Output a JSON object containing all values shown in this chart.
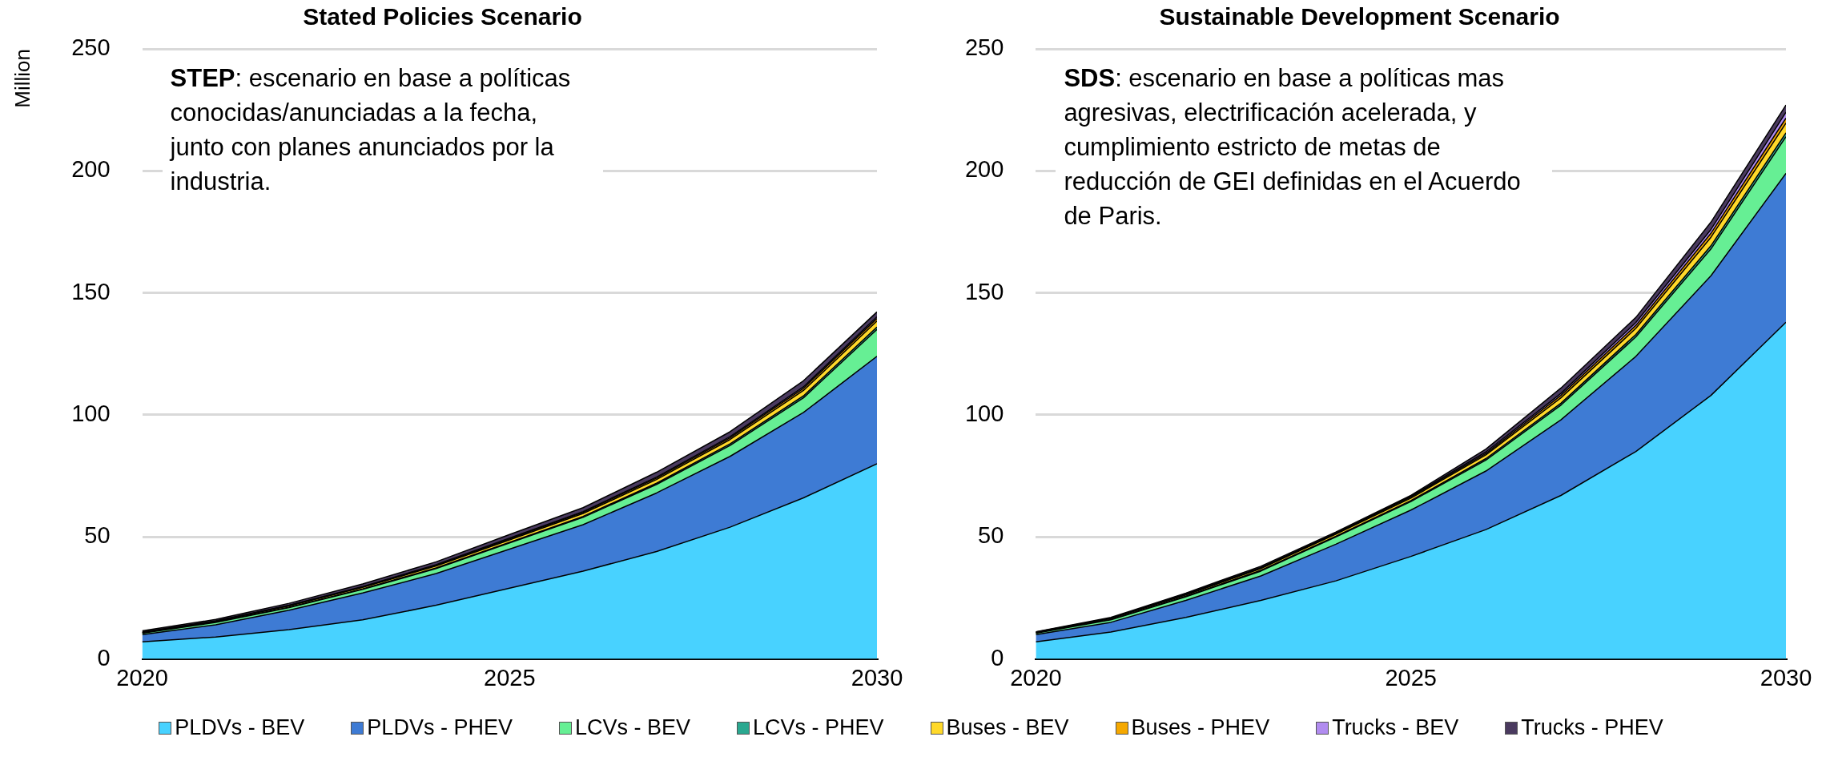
{
  "chart_data": [
    {
      "type": "area",
      "title": "Stated Policies Scenario",
      "ylabel": "Million",
      "stacked": true,
      "x": [
        2020,
        2021,
        2022,
        2023,
        2024,
        2025,
        2026,
        2027,
        2028,
        2029,
        2030
      ],
      "xlim": [
        2020,
        2030
      ],
      "xticks": [
        2020,
        2025,
        2030
      ],
      "ylim": [
        0,
        250
      ],
      "yticks": [
        0,
        50,
        100,
        150,
        200,
        250
      ],
      "grid": "y",
      "legend": "bottom",
      "marker": "none",
      "line_style": "solid",
      "annotations": [
        "STEP: escenario en base a políticas conocidas/anunciadas a la fecha, junto con planes anunciados por la industria."
      ],
      "series": [
        {
          "name": "PLDVs - BEV",
          "color": "#48d2ff",
          "values": [
            7,
            9,
            12,
            16,
            22,
            29,
            36,
            44,
            54,
            66,
            80
          ]
        },
        {
          "name": "PLDVs - PHEV",
          "color": "#3e7bd4",
          "values": [
            3,
            5,
            8,
            11,
            13,
            16,
            19,
            24,
            29,
            35,
            44
          ]
        },
        {
          "name": "LCVs - BEV",
          "color": "#66ef94",
          "values": [
            0.5,
            1,
            1,
            1.5,
            2,
            2.5,
            3,
            3.5,
            4.5,
            6,
            11
          ]
        },
        {
          "name": "LCVs - PHEV",
          "color": "#2aa890",
          "values": [
            0.1,
            0.1,
            0.2,
            0.2,
            0.3,
            0.3,
            0.4,
            0.5,
            0.6,
            0.8,
            1
          ]
        },
        {
          "name": "Buses - BEV",
          "color": "#ffd92a",
          "values": [
            0.2,
            0.3,
            0.5,
            0.6,
            0.8,
            1,
            1.2,
            1.5,
            1.8,
            2.2,
            2.5
          ]
        },
        {
          "name": "Buses - PHEV",
          "color": "#f5a800",
          "values": [
            0.1,
            0.1,
            0.2,
            0.2,
            0.3,
            0.4,
            0.5,
            0.6,
            0.7,
            0.9,
            1
          ]
        },
        {
          "name": "Trucks - BEV",
          "color": "#b18cf0",
          "values": [
            0.1,
            0.1,
            0.1,
            0.2,
            0.2,
            0.3,
            0.3,
            0.4,
            0.5,
            0.6,
            0.7
          ]
        },
        {
          "name": "Trucks - PHEV",
          "color": "#4a3a5f",
          "values": [
            0.5,
            0.6,
            0.8,
            1,
            1.2,
            1.5,
            1.6,
            2,
            2,
            2.5,
            2
          ]
        }
      ]
    },
    {
      "type": "area",
      "title": "Sustainable Development Scenario",
      "stacked": true,
      "x": [
        2020,
        2021,
        2022,
        2023,
        2024,
        2025,
        2026,
        2027,
        2028,
        2029,
        2030
      ],
      "xlim": [
        2020,
        2030
      ],
      "xticks": [
        2020,
        2025,
        2030
      ],
      "ylim": [
        0,
        250
      ],
      "yticks": [
        0,
        50,
        100,
        150,
        200,
        250
      ],
      "grid": "y",
      "legend": "bottom",
      "marker": "none",
      "line_style": "solid",
      "annotations": [
        "SDS: escenario en base a políticas mas agresivas, electrificación acelerada, y cumplimiento estricto de metas de reducción de GEI definidas en el Acuerdo de Paris."
      ],
      "series": [
        {
          "name": "PLDVs - BEV",
          "color": "#48d2ff",
          "values": [
            7,
            11,
            17,
            24,
            32,
            42,
            53,
            67,
            85,
            108,
            138
          ]
        },
        {
          "name": "PLDVs - PHEV",
          "color": "#3e7bd4",
          "values": [
            3,
            4,
            7,
            10,
            15,
            19,
            24,
            31,
            39,
            49,
            61
          ]
        },
        {
          "name": "LCVs - BEV",
          "color": "#66ef94",
          "values": [
            0.5,
            1,
            1.5,
            2,
            3,
            3.5,
            4.5,
            6,
            8,
            11,
            15
          ]
        },
        {
          "name": "LCVs - PHEV",
          "color": "#2aa890",
          "values": [
            0.1,
            0.1,
            0.2,
            0.3,
            0.3,
            0.4,
            0.6,
            0.8,
            1,
            1.3,
            1.6
          ]
        },
        {
          "name": "Buses - BEV",
          "color": "#ffd92a",
          "values": [
            0.2,
            0.4,
            0.5,
            0.7,
            0.8,
            1,
            1.5,
            2.2,
            2.5,
            3.5,
            4
          ]
        },
        {
          "name": "Buses - PHEV",
          "color": "#f5a800",
          "values": [
            0.1,
            0.1,
            0.2,
            0.3,
            0.3,
            0.4,
            0.6,
            1,
            1.2,
            1.6,
            2
          ]
        },
        {
          "name": "Trucks - BEV",
          "color": "#b18cf0",
          "values": [
            0.1,
            0.1,
            0.2,
            0.2,
            0.2,
            0.3,
            0.6,
            0.8,
            1.2,
            1.6,
            2.4
          ]
        },
        {
          "name": "Trucks - PHEV",
          "color": "#4a3a5f",
          "values": [
            0.1,
            0.3,
            0.4,
            0.5,
            0.4,
            0.4,
            1.2,
            2.2,
            2.1,
            3,
            3
          ]
        }
      ]
    }
  ]
}
